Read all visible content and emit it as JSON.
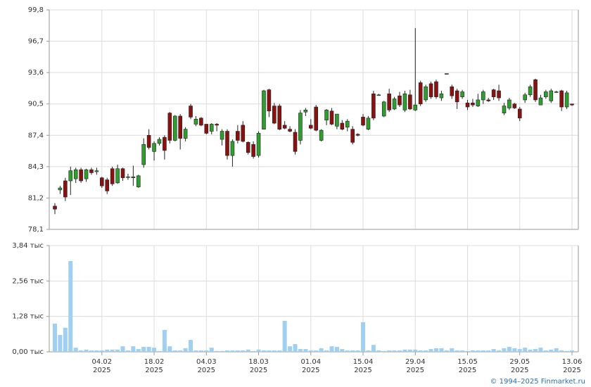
{
  "chart_data": [
    {
      "type": "candlestick",
      "open": [
        80.4,
        82.0,
        82.9,
        82.9,
        83.1,
        84.0,
        83.1,
        84.0,
        83.8,
        83.2,
        83.0,
        84.1,
        82.7,
        84.1,
        83.3,
        83.2,
        82.3,
        84.5,
        87.4,
        85.8,
        86.6,
        87.2,
        89.6,
        86.9,
        89.3,
        87.1,
        90.3,
        88.5,
        89.1,
        88.5,
        87.8,
        88.5,
        87.0,
        87.8,
        85.4,
        87.8,
        88.4,
        86.7,
        86.5,
        85.4,
        88.0,
        91.9,
        90.3,
        90.3,
        88.4,
        88.0,
        87.7,
        86.9,
        89.7,
        88.4,
        90.2,
        86.9,
        88.9,
        89.8,
        88.3,
        88.6,
        88.2,
        88.0,
        87.5,
        89.2,
        88.0,
        91.5,
        91.4,
        89.3,
        91.5,
        90.0,
        91.3,
        89.9,
        91.4,
        89.9,
        92.6,
        90.9,
        92.5,
        92.7,
        91.1,
        93.5,
        92.2,
        91.8,
        91.2,
        90.6,
        90.6,
        90.3,
        90.9,
        90.9,
        91.9,
        91.8,
        89.6,
        90.1,
        90.5,
        90.0,
        90.9,
        91.4,
        92.9,
        90.4,
        91.2,
        90.8,
        91.7,
        91.8,
        90.2,
        90.5
      ],
      "high": [
        80.7,
        82.4,
        83.2,
        84.3,
        84.2,
        84.2,
        84.1,
        84.2,
        84.2,
        83.3,
        83.2,
        84.3,
        84.5,
        84.2,
        83.6,
        84.4,
        83.5,
        87.1,
        88.0,
        86.8,
        87.2,
        87.4,
        89.7,
        89.4,
        89.5,
        88.2,
        90.5,
        89.3,
        89.2,
        88.5,
        88.6,
        88.6,
        88.0,
        88.0,
        87.0,
        88.4,
        88.8,
        86.8,
        86.8,
        87.8,
        91.9,
        92.0,
        90.6,
        90.5,
        88.8,
        88.3,
        88.0,
        89.9,
        90.1,
        89.0,
        90.4,
        88.0,
        90.0,
        90.1,
        89.5,
        88.9,
        89.0,
        88.3,
        87.6,
        89.5,
        89.3,
        91.8,
        91.5,
        90.8,
        92.0,
        91.2,
        91.7,
        91.8,
        91.9,
        98.0,
        92.8,
        92.4,
        92.7,
        92.9,
        91.8,
        93.5,
        92.4,
        92.0,
        91.9,
        90.9,
        91.0,
        91.5,
        91.9,
        91.1,
        92.0,
        92.4,
        90.6,
        91.1,
        90.6,
        90.2,
        91.6,
        92.4,
        93.0,
        91.4,
        91.9,
        92.0,
        91.8,
        91.9,
        91.8,
        90.5
      ],
      "low": [
        79.6,
        81.6,
        80.9,
        81.5,
        82.7,
        82.7,
        82.8,
        83.5,
        83.5,
        82.2,
        81.6,
        82.4,
        82.6,
        82.9,
        83.0,
        82.4,
        82.2,
        84.2,
        86.0,
        84.9,
        86.4,
        85.0,
        86.6,
        86.8,
        86.0,
        86.8,
        89.0,
        88.3,
        88.3,
        87.5,
        87.5,
        87.8,
        86.4,
        85.0,
        84.3,
        86.6,
        86.7,
        85.5,
        85.1,
        85.2,
        88.0,
        89.2,
        88.5,
        87.9,
        88.0,
        87.7,
        85.5,
        86.5,
        89.3,
        88.0,
        87.8,
        86.8,
        88.4,
        88.4,
        88.0,
        87.9,
        87.8,
        86.5,
        87.3,
        88.3,
        87.9,
        88.9,
        91.3,
        89.2,
        89.7,
        89.9,
        90.2,
        89.7,
        89.9,
        89.8,
        90.3,
        90.7,
        91.0,
        91.0,
        90.8,
        93.4,
        91.0,
        90.0,
        91.0,
        89.9,
        90.2,
        90.2,
        90.5,
        90.7,
        90.9,
        90.8,
        89.4,
        89.9,
        90.0,
        88.8,
        90.6,
        91.2,
        90.7,
        90.4,
        91.0,
        90.6,
        91.6,
        89.8,
        90.0,
        90.3
      ],
      "close": [
        80.1,
        82.2,
        81.3,
        83.9,
        84.0,
        82.9,
        84.0,
        83.7,
        83.9,
        82.4,
        81.9,
        82.6,
        84.1,
        83.2,
        83.3,
        83.3,
        83.4,
        86.5,
        86.2,
        86.6,
        87.0,
        85.9,
        86.9,
        89.3,
        87.1,
        88.0,
        89.2,
        89.0,
        88.4,
        87.6,
        88.5,
        88.4,
        87.8,
        85.4,
        86.8,
        86.9,
        86.8,
        85.7,
        85.3,
        87.6,
        91.8,
        89.8,
        88.6,
        88.0,
        88.1,
        87.8,
        85.8,
        89.6,
        89.9,
        88.1,
        87.9,
        87.9,
        89.9,
        88.5,
        89.5,
        88.0,
        88.8,
        86.7,
        87.4,
        88.4,
        89.1,
        89.1,
        91.4,
        90.7,
        89.9,
        91.0,
        90.4,
        91.5,
        90.0,
        90.4,
        90.5,
        92.2,
        91.2,
        91.2,
        91.5,
        93.5,
        91.3,
        90.7,
        91.7,
        90.2,
        90.4,
        90.9,
        91.7,
        90.8,
        91.2,
        91.1,
        90.3,
        90.9,
        90.1,
        89.1,
        91.4,
        92.2,
        90.9,
        91.1,
        91.7,
        91.8,
        91.7,
        90.2,
        91.6,
        90.4
      ],
      "up_color": "#2e9e2e",
      "down_color": "#8b1010",
      "ylim": [
        78.1,
        99.8
      ],
      "yticks": [
        {
          "value": 78.1,
          "label": "78,1"
        },
        {
          "value": 81.2,
          "label": "81,2"
        },
        {
          "value": 84.3,
          "label": "84,3"
        },
        {
          "value": 87.4,
          "label": "87,4"
        },
        {
          "value": 90.5,
          "label": "90,5"
        },
        {
          "value": 93.6,
          "label": "93,6"
        },
        {
          "value": 96.7,
          "label": "96,7"
        },
        {
          "value": 99.8,
          "label": "99,8"
        }
      ],
      "grid": true
    },
    {
      "type": "bar",
      "categories": [
        null,
        null,
        null,
        null,
        null,
        null,
        null,
        null,
        null,
        "04.02\n2025",
        null,
        null,
        null,
        null,
        null,
        null,
        null,
        null,
        null,
        "18.02\n2025",
        null,
        null,
        null,
        null,
        null,
        null,
        null,
        null,
        null,
        "04.03\n2025",
        null,
        null,
        null,
        null,
        null,
        null,
        null,
        null,
        null,
        "18.03\n2025",
        null,
        null,
        null,
        null,
        null,
        null,
        null,
        null,
        null,
        "01.04\n2025",
        null,
        null,
        null,
        null,
        null,
        null,
        null,
        null,
        null,
        "15.04\n2025",
        null,
        null,
        null,
        null,
        null,
        null,
        null,
        null,
        null,
        "29.04\n2025",
        null,
        null,
        null,
        null,
        null,
        null,
        null,
        null,
        null,
        "15.05\n2025",
        null,
        null,
        null,
        null,
        null,
        null,
        null,
        null,
        null,
        "29.05\n2025",
        null,
        null,
        null,
        null,
        null,
        null,
        null,
        null,
        null,
        "13.06\n2025"
      ],
      "values": [
        1.02,
        0.61,
        0.87,
        3.28,
        0.15,
        0.05,
        0.08,
        0.05,
        0.05,
        0.05,
        0.08,
        0.08,
        0.08,
        0.2,
        0.05,
        0.2,
        0.1,
        0.18,
        0.18,
        0.15,
        0.03,
        0.79,
        0.2,
        0.05,
        0.05,
        0.13,
        0.43,
        0.05,
        0.05,
        0.05,
        0.15,
        0.03,
        0.03,
        0.05,
        0.05,
        0.05,
        0.05,
        0.08,
        0.03,
        0.08,
        0.05,
        0.05,
        0.05,
        0.05,
        1.12,
        0.2,
        0.28,
        0.1,
        0.1,
        0.05,
        0.05,
        0.13,
        0.05,
        0.2,
        0.18,
        0.1,
        0.05,
        0.05,
        0.05,
        1.07,
        0.05,
        0.25,
        0.05,
        0.03,
        0.05,
        0.05,
        0.05,
        0.08,
        0.08,
        0.08,
        0.05,
        0.05,
        0.1,
        0.13,
        0.13,
        0.05,
        0.13,
        0.05,
        0.05,
        0.03,
        0.05,
        0.05,
        0.05,
        0.05,
        0.1,
        0.05,
        0.13,
        0.18,
        0.13,
        0.1,
        0.15,
        0.08,
        0.1,
        0.15,
        0.05,
        0.08,
        0.13,
        0.05,
        0.03,
        0.05
      ],
      "color": "#9fd0f2",
      "ylim": [
        0,
        3.84
      ],
      "yticks": [
        {
          "value": 0,
          "label": "0,00 тыс"
        },
        {
          "value": 1.28,
          "label": "1,28 тыс"
        },
        {
          "value": 2.56,
          "label": "2,56 тыс"
        },
        {
          "value": 3.84,
          "label": "3,84 тыс"
        }
      ],
      "grid": true
    }
  ],
  "footer": "© 1994–2025 Finmarket.ru"
}
